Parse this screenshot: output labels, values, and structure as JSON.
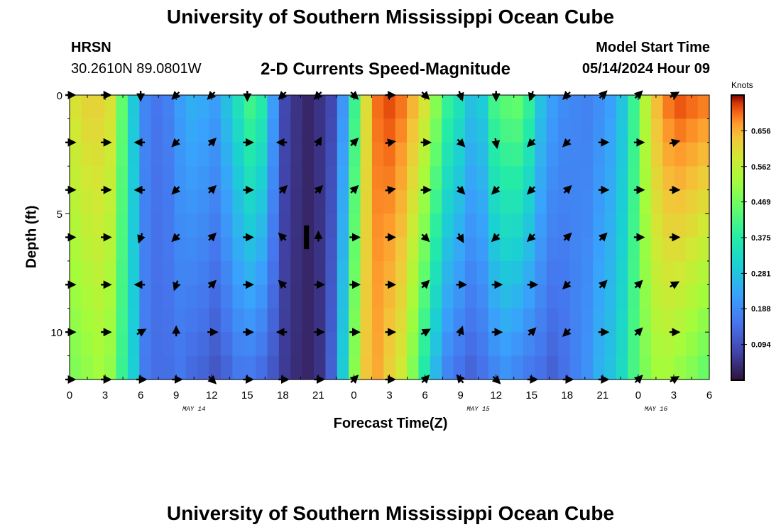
{
  "title": "University of Southern Mississippi Ocean Cube",
  "station": {
    "name": "HRSN",
    "coords": "30.2610N  89.0801W"
  },
  "subtitle": "2-D Currents Speed-Magnitude",
  "model_start": {
    "label": "Model Start Time",
    "value": "05/14/2024 Hour 09"
  },
  "footer_title": "University of Southern Mississippi Ocean Cube",
  "chart_data": {
    "type": "heatmap",
    "title": "2-D Currents Speed-Magnitude",
    "xlabel": "Forecast Time(Z)",
    "ylabel": "Depth (ft)",
    "x_tick_labels": [
      "0",
      "3",
      "6",
      "9",
      "12",
      "15",
      "18",
      "21",
      "0",
      "3",
      "6",
      "9",
      "12",
      "15",
      "18",
      "21",
      "0",
      "3",
      "6"
    ],
    "x_date_labels": [
      {
        "label": "MAY 14",
        "tick_index": 3.5
      },
      {
        "label": "MAY 15",
        "tick_index": 11.5
      },
      {
        "label": "MAY 16",
        "tick_index": 16.5
      }
    ],
    "y_tick_labels": [
      "0",
      "5",
      "10"
    ],
    "ylim": [
      0,
      12
    ],
    "xlim_hours": [
      0,
      54
    ],
    "colorbar": {
      "units": "Knots",
      "range": [
        0.0,
        0.75
      ],
      "tick_labels": [
        "0.656",
        "0.562",
        "0.469",
        "0.375",
        "0.281",
        "0.188",
        "0.094"
      ],
      "tick_values": [
        0.656,
        0.562,
        0.469,
        0.375,
        0.281,
        0.188,
        0.094
      ]
    },
    "time_hours": [
      0,
      1,
      2,
      3,
      4,
      5,
      6,
      7,
      8,
      9,
      10,
      11,
      12,
      13,
      14,
      15,
      16,
      17,
      18,
      19,
      20,
      21,
      22,
      23,
      24,
      25,
      26,
      27,
      28,
      29,
      30,
      31,
      32,
      33,
      34,
      35,
      36,
      37,
      38,
      39,
      40,
      41,
      42,
      43,
      44,
      45,
      46,
      47,
      48,
      49,
      50,
      51,
      52,
      53,
      54
    ],
    "speed_surface": [
      0.6,
      0.62,
      0.62,
      0.6,
      0.45,
      0.29,
      0.18,
      0.15,
      0.17,
      0.22,
      0.25,
      0.24,
      0.22,
      0.28,
      0.35,
      0.42,
      0.38,
      0.22,
      0.08,
      0.05,
      0.03,
      0.05,
      0.08,
      0.2,
      0.4,
      0.6,
      0.7,
      0.72,
      0.7,
      0.66,
      0.6,
      0.5,
      0.4,
      0.35,
      0.28,
      0.3,
      0.42,
      0.45,
      0.46,
      0.4,
      0.28,
      0.22,
      0.19,
      0.18,
      0.17,
      0.19,
      0.22,
      0.28,
      0.4,
      0.55,
      0.65,
      0.7,
      0.72,
      0.71,
      0.7
    ],
    "speed_bottom": [
      0.48,
      0.5,
      0.52,
      0.5,
      0.4,
      0.3,
      0.16,
      0.14,
      0.14,
      0.15,
      0.13,
      0.12,
      0.1,
      0.12,
      0.15,
      0.15,
      0.13,
      0.1,
      0.06,
      0.04,
      0.03,
      0.05,
      0.12,
      0.3,
      0.5,
      0.64,
      0.66,
      0.62,
      0.58,
      0.48,
      0.36,
      0.25,
      0.17,
      0.14,
      0.12,
      0.14,
      0.17,
      0.19,
      0.17,
      0.15,
      0.14,
      0.12,
      0.14,
      0.17,
      0.2,
      0.25,
      0.28,
      0.33,
      0.42,
      0.48,
      0.52,
      0.52,
      0.5,
      0.48,
      0.45
    ],
    "vector_depths_ft": [
      0,
      2,
      4,
      6,
      8,
      10,
      12
    ],
    "vector_times_hours": [
      0,
      3,
      6,
      9,
      12,
      15,
      18,
      21,
      24,
      27,
      30,
      33,
      36,
      39,
      42,
      45,
      48,
      51
    ],
    "vector_direction_deg": [
      [
        90,
        90,
        180,
        225,
        225,
        180,
        225,
        225,
        135,
        90,
        135,
        160,
        180,
        200,
        225,
        45,
        45,
        60
      ],
      [
        90,
        90,
        270,
        225,
        45,
        90,
        270,
        30,
        45,
        80,
        90,
        135,
        170,
        225,
        225,
        90,
        90,
        75
      ],
      [
        90,
        90,
        270,
        225,
        45,
        90,
        45,
        45,
        45,
        80,
        90,
        135,
        225,
        225,
        45,
        90,
        90,
        90
      ],
      [
        90,
        90,
        200,
        225,
        45,
        90,
        315,
        0,
        90,
        90,
        135,
        150,
        225,
        225,
        45,
        45,
        90,
        90
      ],
      [
        90,
        90,
        270,
        200,
        45,
        90,
        315,
        90,
        90,
        90,
        45,
        90,
        90,
        90,
        225,
        45,
        45,
        60
      ],
      [
        90,
        90,
        60,
        0,
        90,
        90,
        270,
        90,
        90,
        90,
        60,
        20,
        90,
        45,
        225,
        90,
        45,
        90
      ],
      [
        90,
        90,
        90,
        90,
        135,
        90,
        90,
        90,
        45,
        90,
        45,
        320,
        135,
        90,
        90,
        90,
        45,
        60
      ]
    ],
    "markers": [
      {
        "time_hours": 20,
        "depth_range_ft": [
          5.5,
          6.5
        ],
        "label": ""
      }
    ]
  }
}
